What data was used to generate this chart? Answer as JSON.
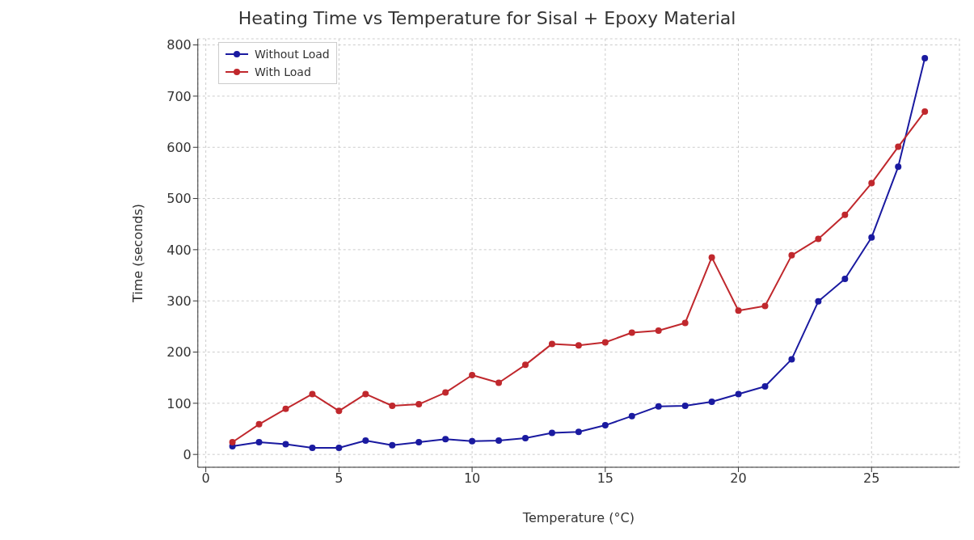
{
  "chart_data": {
    "type": "line",
    "title": "Heating Time vs Temperature for Sisal + Epoxy Material",
    "xlabel": "Temperature (°C)",
    "ylabel": "Time (seconds)",
    "x": [
      1,
      2,
      3,
      4,
      5,
      6,
      7,
      8,
      9,
      10,
      11,
      12,
      13,
      14,
      15,
      16,
      17,
      18,
      19,
      20,
      21,
      22,
      23,
      24,
      25,
      26,
      27
    ],
    "series": [
      {
        "name": "Without Load",
        "color": "#1a1aa0",
        "values": [
          16,
          24,
          20,
          13,
          13,
          27,
          18,
          24,
          30,
          26,
          27,
          32,
          42,
          44,
          57,
          75,
          94,
          95,
          103,
          118,
          133,
          186,
          299,
          343,
          424,
          562,
          774
        ]
      },
      {
        "name": "With Load",
        "color": "#c0282d",
        "values": [
          24,
          59,
          89,
          118,
          85,
          118,
          95,
          98,
          121,
          155,
          140,
          175,
          216,
          213,
          219,
          238,
          242,
          257,
          385,
          281,
          290,
          389,
          421,
          468,
          530,
          601,
          670
        ]
      }
    ],
    "xlim": [
      -0.3,
      28.3
    ],
    "xticks": [
      0,
      5,
      10,
      15,
      20,
      25
    ],
    "ylim": [
      -25,
      812
    ],
    "yticks": [
      0,
      100,
      200,
      300,
      400,
      500,
      600,
      700,
      800
    ],
    "grid": true,
    "legend": "top left",
    "marker": "circle",
    "line_style": "solid"
  }
}
